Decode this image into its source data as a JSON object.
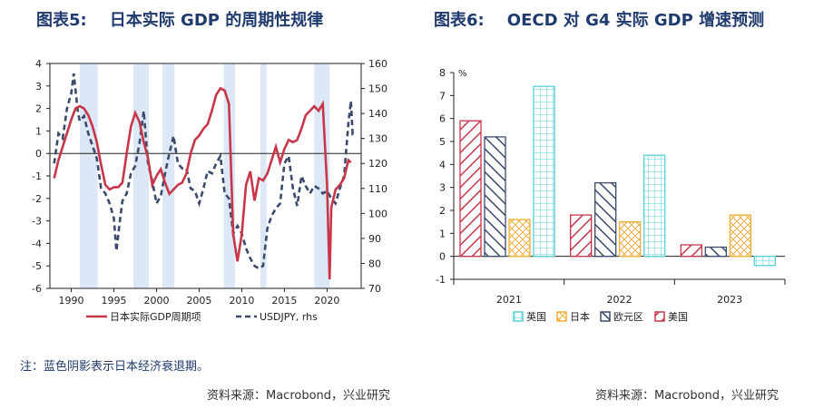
{
  "left": {
    "title": "图表5:    日本实际 GDP 的周期性规律",
    "legend_gdp": "日本实际GDP周期项",
    "legend_fx": "USDJPY, rhs",
    "note": "注：蓝色阴影表示日本经济衰退期。",
    "source": "资料来源：Macrobond，兴业研究",
    "colors": {
      "gdp": "#c8364a",
      "fx": "#3b4a6b",
      "shade": "#dce8f5"
    }
  },
  "right": {
    "title": "图表6:    OECD 对 G4 实际 GDP 增速预测",
    "source": "资料来源：Macrobond，兴业研究",
    "unit_label": "%"
  },
  "chart_data": [
    {
      "type": "line",
      "title": "日本实际 GDP 的周期性规律",
      "x_range": [
        1987.5,
        2024
      ],
      "x_ticks": [
        1990,
        1995,
        2000,
        2005,
        2010,
        2015,
        2020
      ],
      "ylim": [
        -6,
        4
      ],
      "y_ticks": [
        -6,
        -5,
        -4,
        -3,
        -2,
        -1,
        0,
        1,
        2,
        3,
        4
      ],
      "y2lim": [
        70,
        160
      ],
      "y2_ticks": [
        70,
        80,
        90,
        100,
        110,
        120,
        130,
        140,
        150,
        160
      ],
      "recessions": [
        [
          1991.0,
          1993.1
        ],
        [
          1997.3,
          1999.1
        ],
        [
          2000.7,
          2002.1
        ],
        [
          2007.9,
          2009.2
        ],
        [
          2012.2,
          2012.9
        ],
        [
          2018.5,
          2020.3
        ]
      ],
      "series": [
        {
          "name": "日本实际GDP周期项",
          "axis": "left",
          "points": [
            [
              1988.0,
              -1.1
            ],
            [
              1988.5,
              -0.3
            ],
            [
              1989.0,
              0.3
            ],
            [
              1989.5,
              0.9
            ],
            [
              1990.0,
              1.5
            ],
            [
              1990.5,
              2.0
            ],
            [
              1991.0,
              2.1
            ],
            [
              1991.5,
              2.0
            ],
            [
              1992.0,
              1.7
            ],
            [
              1992.5,
              1.2
            ],
            [
              1993.0,
              0.5
            ],
            [
              1993.5,
              -0.5
            ],
            [
              1994.0,
              -1.4
            ],
            [
              1994.5,
              -1.6
            ],
            [
              1995.0,
              -1.5
            ],
            [
              1995.5,
              -1.5
            ],
            [
              1996.0,
              -1.3
            ],
            [
              1996.5,
              0.0
            ],
            [
              1997.0,
              1.2
            ],
            [
              1997.5,
              1.8
            ],
            [
              1998.0,
              1.4
            ],
            [
              1998.5,
              0.5
            ],
            [
              1999.0,
              -0.2
            ],
            [
              1999.5,
              -1.4
            ],
            [
              2000.0,
              -1.0
            ],
            [
              2000.5,
              -0.7
            ],
            [
              2001.0,
              -1.3
            ],
            [
              2001.5,
              -1.8
            ],
            [
              2002.0,
              -1.6
            ],
            [
              2002.5,
              -1.4
            ],
            [
              2003.0,
              -1.3
            ],
            [
              2003.5,
              -0.9
            ],
            [
              2004.0,
              0.0
            ],
            [
              2004.5,
              0.6
            ],
            [
              2005.0,
              0.8
            ],
            [
              2005.5,
              1.1
            ],
            [
              2006.0,
              1.3
            ],
            [
              2006.5,
              1.9
            ],
            [
              2007.0,
              2.6
            ],
            [
              2007.5,
              2.9
            ],
            [
              2008.0,
              2.8
            ],
            [
              2008.5,
              2.2
            ],
            [
              2009.0,
              -3.6
            ],
            [
              2009.5,
              -4.8
            ],
            [
              2010.0,
              -3.6
            ],
            [
              2010.5,
              -1.4
            ],
            [
              2011.0,
              -0.8
            ],
            [
              2011.5,
              -2.1
            ],
            [
              2012.0,
              -1.1
            ],
            [
              2012.5,
              -1.2
            ],
            [
              2013.0,
              -0.9
            ],
            [
              2013.5,
              -0.3
            ],
            [
              2014.0,
              0.3
            ],
            [
              2014.5,
              -0.4
            ],
            [
              2015.0,
              0.2
            ],
            [
              2015.5,
              0.6
            ],
            [
              2016.0,
              0.5
            ],
            [
              2016.5,
              0.6
            ],
            [
              2017.0,
              1.1
            ],
            [
              2017.5,
              1.7
            ],
            [
              2018.0,
              1.9
            ],
            [
              2018.5,
              2.1
            ],
            [
              2019.0,
              1.9
            ],
            [
              2019.5,
              2.2
            ],
            [
              2020.0,
              -1.4
            ],
            [
              2020.3,
              -5.6
            ],
            [
              2020.5,
              -2.4
            ],
            [
              2021.0,
              -1.6
            ],
            [
              2021.5,
              -1.4
            ],
            [
              2022.0,
              -1.1
            ],
            [
              2022.5,
              -0.3
            ],
            [
              2022.8,
              -0.4
            ]
          ]
        },
        {
          "name": "USDJPY, rhs",
          "axis": "right",
          "points": [
            [
              1988.0,
              120
            ],
            [
              1988.5,
              132
            ],
            [
              1989.0,
              130
            ],
            [
              1989.5,
              142
            ],
            [
              1990.0,
              148
            ],
            [
              1990.3,
              156
            ],
            [
              1990.8,
              140
            ],
            [
              1991.0,
              137
            ],
            [
              1991.5,
              139
            ],
            [
              1992.0,
              132
            ],
            [
              1992.5,
              127
            ],
            [
              1993.0,
              122
            ],
            [
              1993.5,
              110
            ],
            [
              1994.0,
              108
            ],
            [
              1994.5,
              104
            ],
            [
              1995.0,
              98
            ],
            [
              1995.3,
              85
            ],
            [
              1995.7,
              97
            ],
            [
              1996.0,
              105
            ],
            [
              1996.5,
              108
            ],
            [
              1997.0,
              116
            ],
            [
              1997.5,
              119
            ],
            [
              1998.0,
              128
            ],
            [
              1998.5,
              141
            ],
            [
              1999.0,
              120
            ],
            [
              1999.5,
              113
            ],
            [
              2000.0,
              104
            ],
            [
              2000.5,
              107
            ],
            [
              2001.0,
              116
            ],
            [
              2001.5,
              124
            ],
            [
              2002.0,
              131
            ],
            [
              2002.5,
              120
            ],
            [
              2003.0,
              118
            ],
            [
              2003.5,
              118
            ],
            [
              2004.0,
              110
            ],
            [
              2004.5,
              109
            ],
            [
              2005.0,
              104
            ],
            [
              2005.5,
              110
            ],
            [
              2006.0,
              117
            ],
            [
              2006.5,
              116
            ],
            [
              2007.0,
              120
            ],
            [
              2007.5,
              123
            ],
            [
              2008.0,
              108
            ],
            [
              2008.5,
              106
            ],
            [
              2009.0,
              92
            ],
            [
              2009.5,
              95
            ],
            [
              2010.0,
              92
            ],
            [
              2010.5,
              86
            ],
            [
              2011.0,
              82
            ],
            [
              2011.5,
              79
            ],
            [
              2012.0,
              78
            ],
            [
              2012.5,
              79
            ],
            [
              2013.0,
              94
            ],
            [
              2013.5,
              99
            ],
            [
              2014.0,
              102
            ],
            [
              2014.5,
              104
            ],
            [
              2015.0,
              120
            ],
            [
              2015.5,
              123
            ],
            [
              2016.0,
              110
            ],
            [
              2016.5,
              103
            ],
            [
              2017.0,
              115
            ],
            [
              2017.5,
              111
            ],
            [
              2018.0,
              108
            ],
            [
              2018.5,
              111
            ],
            [
              2019.0,
              110
            ],
            [
              2019.5,
              108
            ],
            [
              2020.0,
              109
            ],
            [
              2020.5,
              106
            ],
            [
              2021.0,
              104
            ],
            [
              2021.5,
              110
            ],
            [
              2022.0,
              115
            ],
            [
              2022.5,
              136
            ],
            [
              2022.8,
              145
            ],
            [
              2023.0,
              132
            ],
            [
              2023.3,
              133
            ]
          ]
        }
      ]
    },
    {
      "type": "bar",
      "title": "OECD 对 G4 实际 GDP 增速预测",
      "categories": [
        "2021",
        "2022",
        "2023"
      ],
      "ylim": [
        -1,
        8
      ],
      "y_ticks": [
        -1,
        0,
        1,
        2,
        3,
        4,
        5,
        6,
        7,
        8
      ],
      "ylabel": "%",
      "series": [
        {
          "name": "美国",
          "color": "#c8364a",
          "pattern": "diag-down",
          "values": [
            5.9,
            1.8,
            0.5
          ]
        },
        {
          "name": "欧元区",
          "color": "#3b4a6b",
          "pattern": "diag-up",
          "values": [
            5.2,
            3.2,
            0.4
          ]
        },
        {
          "name": "日本",
          "color": "#f0b03c",
          "pattern": "cross",
          "values": [
            1.6,
            1.5,
            1.8
          ]
        },
        {
          "name": "英国",
          "color": "#55d3d6",
          "pattern": "grid",
          "values": [
            7.4,
            4.4,
            -0.4
          ]
        }
      ],
      "legend_order": [
        "英国",
        "日本",
        "欧元区",
        "美国"
      ]
    }
  ]
}
